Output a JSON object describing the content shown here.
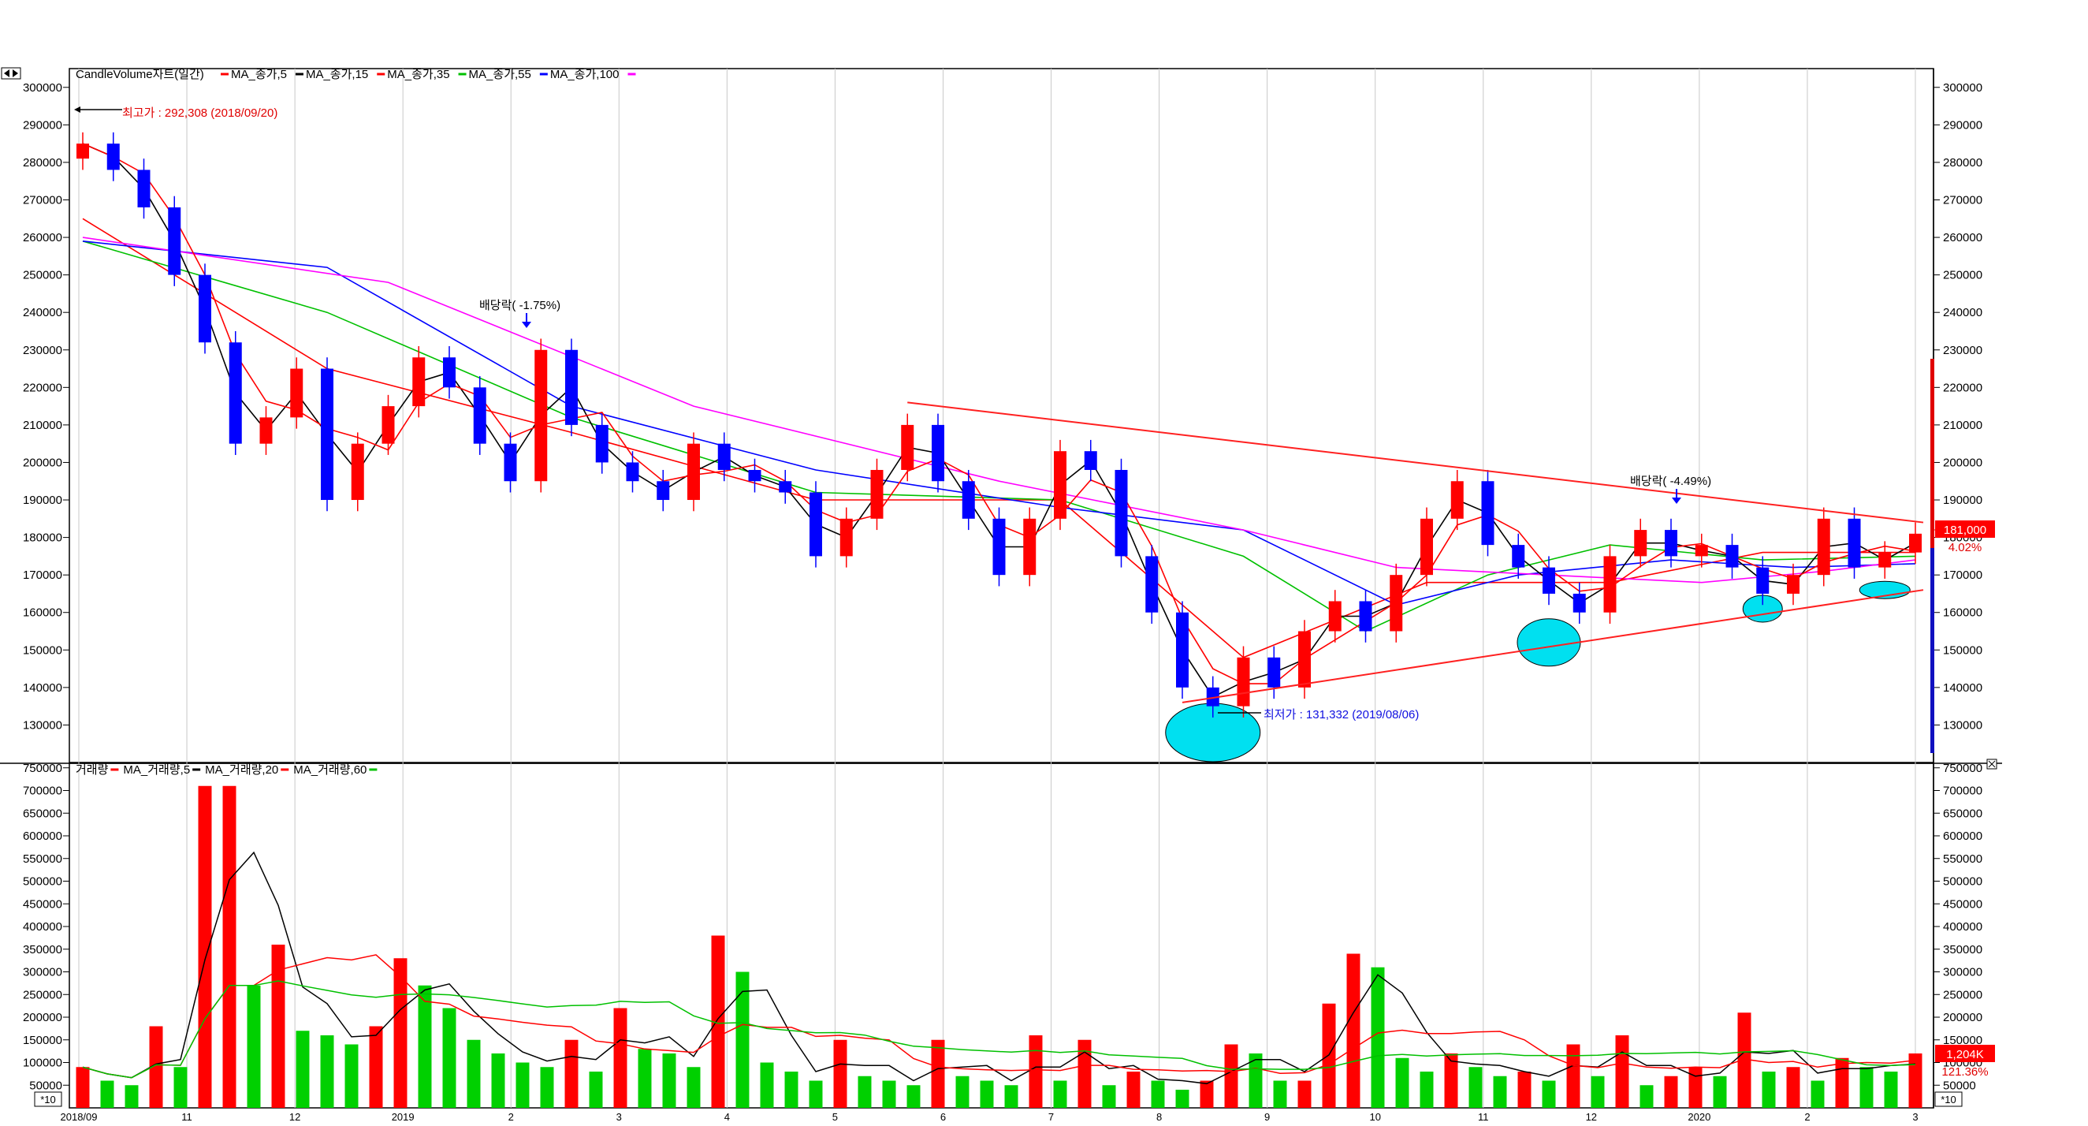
{
  "title": "CandleVolume자트(일간)",
  "price_legend": [
    {
      "label": "MA_종가,5",
      "color": "#ff0000"
    },
    {
      "label": "MA_종가,15",
      "color": "#000000"
    },
    {
      "label": "MA_종가,35",
      "color": "#ff0000"
    },
    {
      "label": "MA_종가,55",
      "color": "#00c000"
    },
    {
      "label": "MA_종가,100",
      "color": "#0000ff"
    }
  ],
  "volume_legend": [
    {
      "label": "거래량",
      "color": "#ff0000"
    },
    {
      "label": "MA_거래량,5",
      "color": "#000000"
    },
    {
      "label": "MA_거래량,20",
      "color": "#ff0000"
    },
    {
      "label": "MA_거래량,60",
      "color": "#00c000"
    }
  ],
  "annotations": {
    "high": "최고가 : 292,308 (2018/09/20)",
    "low": "최저가 : 131,332 (2019/08/06)",
    "dividend1": "배당락( -1.75%)",
    "dividend2": "배당락( -4.49%)",
    "last_price": "181,000",
    "last_change": "4.02%",
    "last_volume": "1,204K",
    "volume_pct": "121.36%",
    "unit_left": "*10",
    "unit_right": "*10"
  },
  "colors": {
    "up": "#ff0000",
    "down": "#0000ff",
    "ma5": "#ff0000",
    "ma15": "#000000",
    "ma35": "#ff0000",
    "ma55": "#00c000",
    "ma100": "#0000ff",
    "ma_extra": "#ff00ff",
    "trendline": "#ff2020",
    "ellipse": "#00e0f0",
    "vol_up": "#ff0000",
    "vol_down": "#00d000"
  },
  "chart_data": [
    {
      "type": "candlestick",
      "title": "CandleVolume자트(일간)",
      "ylim": [
        120000,
        305000
      ],
      "yticks": [
        "300000",
        "290000",
        "280000",
        "270000",
        "260000",
        "250000",
        "240000",
        "230000",
        "220000",
        "210000",
        "200000",
        "190000",
        "180000",
        "170000",
        "160000",
        "150000",
        "140000",
        "130000"
      ],
      "xticks": [
        "2018/09",
        "11",
        "12",
        "2019",
        "2",
        "3",
        "4",
        "5",
        "6",
        "7",
        "8",
        "9",
        "10",
        "11",
        "12",
        "2020",
        "2",
        "3"
      ],
      "close_series": [
        [
          "2018/09",
          285000
        ],
        [
          "2018/09",
          278000
        ],
        [
          "2018/10",
          268000
        ],
        [
          "2018/10",
          250000
        ],
        [
          "2018/10",
          232000
        ],
        [
          "2018/10",
          205000
        ],
        [
          "2018/11",
          212000
        ],
        [
          "2018/11",
          225000
        ],
        [
          "2018/11",
          190000
        ],
        [
          "2018/11",
          205000
        ],
        [
          "2018/12",
          215000
        ],
        [
          "2018/12",
          228000
        ],
        [
          "2018/12",
          220000
        ],
        [
          "2018/12",
          205000
        ],
        [
          "2019/01",
          195000
        ],
        [
          "2019/01",
          230000
        ],
        [
          "2019/01",
          210000
        ],
        [
          "2019/01",
          200000
        ],
        [
          "2019/02",
          195000
        ],
        [
          "2019/02",
          190000
        ],
        [
          "2019/02",
          205000
        ],
        [
          "2019/03",
          198000
        ],
        [
          "2019/03",
          195000
        ],
        [
          "2019/03",
          192000
        ],
        [
          "2019/04",
          175000
        ],
        [
          "2019/04",
          185000
        ],
        [
          "2019/04",
          198000
        ],
        [
          "2019/05",
          210000
        ],
        [
          "2019/05",
          195000
        ],
        [
          "2019/05",
          185000
        ],
        [
          "2019/06",
          170000
        ],
        [
          "2019/06",
          185000
        ],
        [
          "2019/06",
          203000
        ],
        [
          "2019/07",
          198000
        ],
        [
          "2019/07",
          175000
        ],
        [
          "2019/07",
          160000
        ],
        [
          "2019/08",
          140000
        ],
        [
          "2019/08",
          135000
        ],
        [
          "2019/08",
          148000
        ],
        [
          "2019/09",
          140000
        ],
        [
          "2019/09",
          155000
        ],
        [
          "2019/09",
          163000
        ],
        [
          "2019/10",
          155000
        ],
        [
          "2019/10",
          170000
        ],
        [
          "2019/10",
          185000
        ],
        [
          "2019/11",
          195000
        ],
        [
          "2019/11",
          178000
        ],
        [
          "2019/11",
          172000
        ],
        [
          "2019/12",
          165000
        ],
        [
          "2019/12",
          160000
        ],
        [
          "2019/12",
          175000
        ],
        [
          "2020/01",
          182000
        ],
        [
          "2020/01",
          175000
        ],
        [
          "2020/01",
          178000
        ],
        [
          "2020/02",
          172000
        ],
        [
          "2020/02",
          165000
        ],
        [
          "2020/02",
          170000
        ],
        [
          "2020/03",
          185000
        ],
        [
          "2020/03",
          172000
        ],
        [
          "2020/03",
          176000
        ],
        [
          "2020/03",
          181000
        ]
      ],
      "moving_averages": [
        {
          "name": "MA_종가,35",
          "values": [
            [
              0,
              265000
            ],
            [
              8,
              225000
            ],
            [
              16,
              208000
            ],
            [
              24,
              190000
            ],
            [
              32,
              190000
            ],
            [
              38,
              148000
            ],
            [
              44,
              168000
            ],
            [
              50,
              168000
            ],
            [
              55,
              176000
            ],
            [
              60,
              176000
            ]
          ]
        },
        {
          "name": "MA_종가,55",
          "values": [
            [
              0,
              259000
            ],
            [
              8,
              240000
            ],
            [
              16,
              212000
            ],
            [
              24,
              192000
            ],
            [
              32,
              190000
            ],
            [
              38,
              175000
            ],
            [
              42,
              155000
            ],
            [
              46,
              170000
            ],
            [
              50,
              178000
            ],
            [
              55,
              174000
            ],
            [
              60,
              175000
            ]
          ]
        },
        {
          "name": "MA_종가,100",
          "values": [
            [
              0,
              259000
            ],
            [
              8,
              252000
            ],
            [
              16,
              215000
            ],
            [
              24,
              198000
            ],
            [
              32,
              188000
            ],
            [
              38,
              182000
            ],
            [
              43,
              162000
            ],
            [
              47,
              170000
            ],
            [
              52,
              174000
            ],
            [
              56,
              172000
            ],
            [
              60,
              173000
            ]
          ]
        },
        {
          "name": "magenta",
          "values": [
            [
              0,
              260000
            ],
            [
              10,
              248000
            ],
            [
              20,
              215000
            ],
            [
              30,
              195000
            ],
            [
              38,
              182000
            ],
            [
              43,
              172000
            ],
            [
              48,
              170000
            ],
            [
              53,
              168000
            ],
            [
              57,
              171000
            ],
            [
              60,
              174000
            ]
          ]
        }
      ],
      "trendlines": [
        {
          "from": [
            "2019/05",
            216000
          ],
          "to": [
            "2020/03",
            184000
          ]
        },
        {
          "from": [
            "2019/08",
            136000
          ],
          "to": [
            "2020/03",
            166000
          ]
        }
      ]
    },
    {
      "type": "bar",
      "title": "거래량",
      "ylim": [
        0,
        750000
      ],
      "yticks": [
        "750000",
        "700000",
        "650000",
        "600000",
        "550000",
        "500000",
        "450000",
        "400000",
        "350000",
        "300000",
        "250000",
        "200000",
        "150000",
        "100000",
        "50000"
      ],
      "values": [
        90000,
        60000,
        50000,
        180000,
        90000,
        710000,
        710000,
        270000,
        360000,
        170000,
        160000,
        140000,
        180000,
        330000,
        270000,
        220000,
        150000,
        120000,
        100000,
        90000,
        150000,
        80000,
        220000,
        130000,
        120000,
        90000,
        380000,
        300000,
        100000,
        80000,
        60000,
        150000,
        70000,
        60000,
        50000,
        150000,
        70000,
        60000,
        50000,
        160000,
        60000,
        150000,
        50000,
        80000,
        60000,
        40000,
        60000,
        140000,
        120000,
        60000,
        60000,
        230000,
        340000,
        310000,
        110000,
        80000,
        120000,
        90000,
        70000,
        80000,
        60000,
        140000,
        70000,
        160000,
        50000,
        70000,
        90000,
        70000,
        210000,
        80000,
        90000,
        60000,
        110000,
        90000,
        80000,
        120000
      ]
    }
  ]
}
